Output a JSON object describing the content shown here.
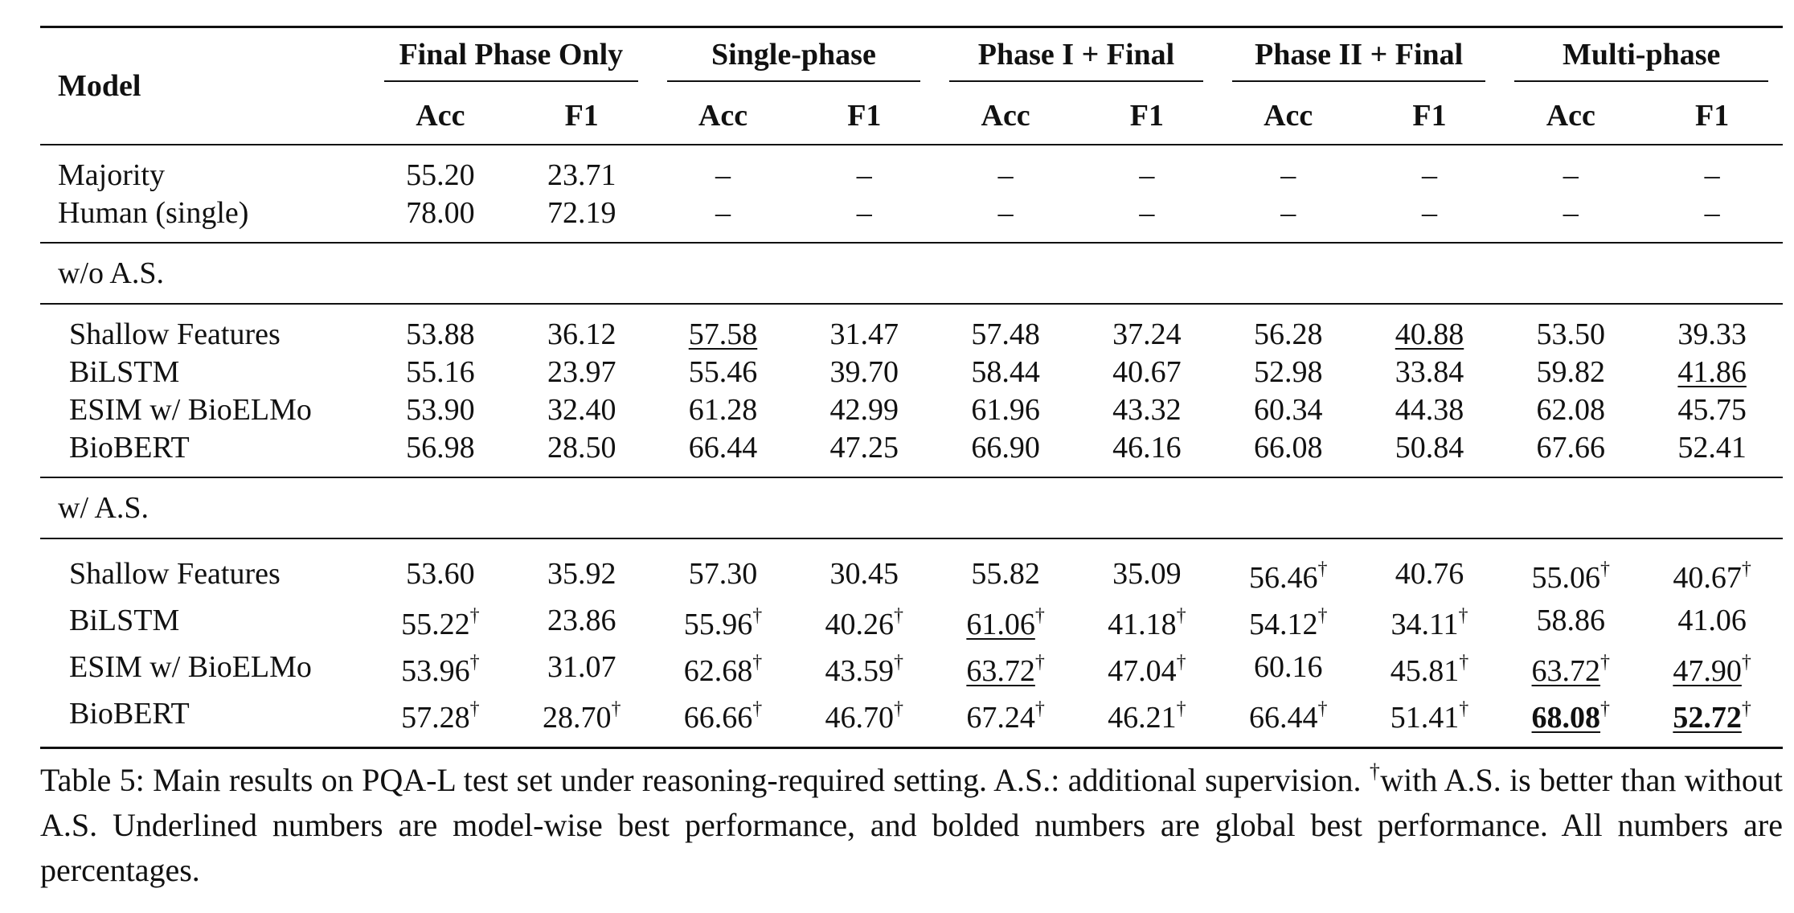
{
  "table": {
    "model_header": "Model",
    "groups": [
      "Final Phase Only",
      "Single-phase",
      "Phase I + Final",
      "Phase II + Final",
      "Multi-phase"
    ],
    "metrics": [
      "Acc",
      "F1",
      "Acc",
      "F1",
      "Acc",
      "F1",
      "Acc",
      "F1",
      "Acc",
      "F1"
    ],
    "baselines": [
      {
        "name": "Majority",
        "values": [
          "55.20",
          "23.71",
          "–",
          "–",
          "–",
          "–",
          "–",
          "–",
          "–",
          "–"
        ]
      },
      {
        "name": "Human (single)",
        "values": [
          "78.00",
          "72.19",
          "–",
          "–",
          "–",
          "–",
          "–",
          "–",
          "–",
          "–"
        ]
      }
    ],
    "sections": [
      {
        "label": "w/o A.S.",
        "rows": [
          {
            "name": "Shallow Features",
            "values": [
              "53.88",
              "36.12",
              "57.58",
              "31.47",
              "57.48",
              "37.24",
              "56.28",
              "40.88",
              "53.50",
              "39.33"
            ]
          },
          {
            "name": "BiLSTM",
            "values": [
              "55.16",
              "23.97",
              "55.46",
              "39.70",
              "58.44",
              "40.67",
              "52.98",
              "33.84",
              "59.82",
              "41.86"
            ]
          },
          {
            "name": "ESIM w/ BioELMo",
            "values": [
              "53.90",
              "32.40",
              "61.28",
              "42.99",
              "61.96",
              "43.32",
              "60.34",
              "44.38",
              "62.08",
              "45.75"
            ]
          },
          {
            "name": "BioBERT",
            "values": [
              "56.98",
              "28.50",
              "66.44",
              "47.25",
              "66.90",
              "46.16",
              "66.08",
              "50.84",
              "67.66",
              "52.41"
            ]
          }
        ]
      },
      {
        "label": "w/ A.S.",
        "rows": [
          {
            "name": "Shallow Features",
            "values": [
              "53.60",
              "35.92",
              "57.30",
              "30.45",
              "55.82",
              "35.09",
              "56.46",
              "40.76",
              "55.06",
              "40.67"
            ]
          },
          {
            "name": "BiLSTM",
            "values": [
              "55.22",
              "23.86",
              "55.96",
              "40.26",
              "61.06",
              "41.18",
              "54.12",
              "34.11",
              "58.86",
              "41.06"
            ]
          },
          {
            "name": "ESIM w/ BioELMo",
            "values": [
              "53.96",
              "31.07",
              "62.68",
              "43.59",
              "63.72",
              "47.04",
              "60.16",
              "45.81",
              "63.72",
              "47.90"
            ]
          },
          {
            "name": "BioBERT",
            "values": [
              "57.28",
              "28.70",
              "66.66",
              "46.70",
              "67.24",
              "46.21",
              "66.44",
              "51.41",
              "68.08",
              "52.72"
            ]
          }
        ]
      }
    ],
    "dagger_symbol": "†"
  },
  "caption": {
    "part1": "Table 5: Main results on PQA-L test set under reasoning-required setting. A.S.: additional supervision. ",
    "dagger": "†",
    "part2": "with A.S. is better than without A.S. Underlined numbers are model-wise best performance, and bolded numbers are global best performance. All numbers are percentages."
  }
}
